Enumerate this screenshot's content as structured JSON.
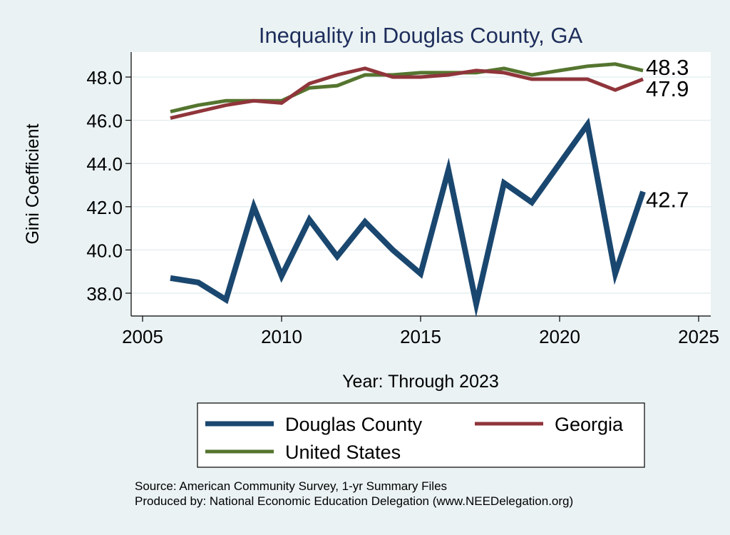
{
  "chart_data": {
    "type": "line",
    "title": "Inequality in Douglas County, GA",
    "xlabel": "Year: Through 2023",
    "ylabel": "Gini Coefficient",
    "xlim": [
      2005,
      2025
    ],
    "ylim": [
      37.0,
      49.0
    ],
    "x_ticks": [
      "2005",
      "2010",
      "2015",
      "2020",
      "2025"
    ],
    "y_ticks": [
      "38.0",
      "40.0",
      "42.0",
      "44.0",
      "46.0",
      "48.0"
    ],
    "grid": true,
    "x": [
      2006,
      2007,
      2008,
      2009,
      2010,
      2011,
      2012,
      2013,
      2014,
      2015,
      2016,
      2017,
      2018,
      2019,
      2020,
      2021,
      2022,
      2023
    ],
    "series": [
      {
        "name": "Douglas County",
        "color": "#1a476f",
        "values": [
          38.7,
          38.5,
          37.7,
          42.0,
          38.8,
          41.4,
          39.7,
          41.3,
          40.0,
          38.9,
          43.7,
          37.5,
          43.1,
          42.2,
          44.0,
          45.8,
          38.9,
          42.7
        ],
        "end_label": "42.7"
      },
      {
        "name": "Georgia",
        "color": "#90353b",
        "values": [
          46.1,
          46.4,
          46.7,
          46.9,
          46.8,
          47.7,
          48.1,
          48.4,
          48.0,
          48.0,
          48.1,
          48.3,
          48.2,
          47.9,
          47.9,
          47.9,
          47.4,
          47.9
        ],
        "end_label": "47.9"
      },
      {
        "name": "United States",
        "color": "#55752f",
        "values": [
          46.4,
          46.7,
          46.9,
          46.9,
          46.9,
          47.5,
          47.6,
          48.1,
          48.1,
          48.2,
          48.2,
          48.2,
          48.4,
          48.1,
          48.3,
          48.5,
          48.6,
          48.3
        ],
        "end_label": "48.3"
      }
    ],
    "legend": {
      "position": "bottom",
      "order": [
        "Douglas County",
        "Georgia",
        "United States"
      ]
    }
  },
  "footer": {
    "source": "Source: American Community Survey, 1-yr Summary Files",
    "produced_by": "Produced by: National Economic Education Delegation (www.NEEDelegation.org)"
  }
}
